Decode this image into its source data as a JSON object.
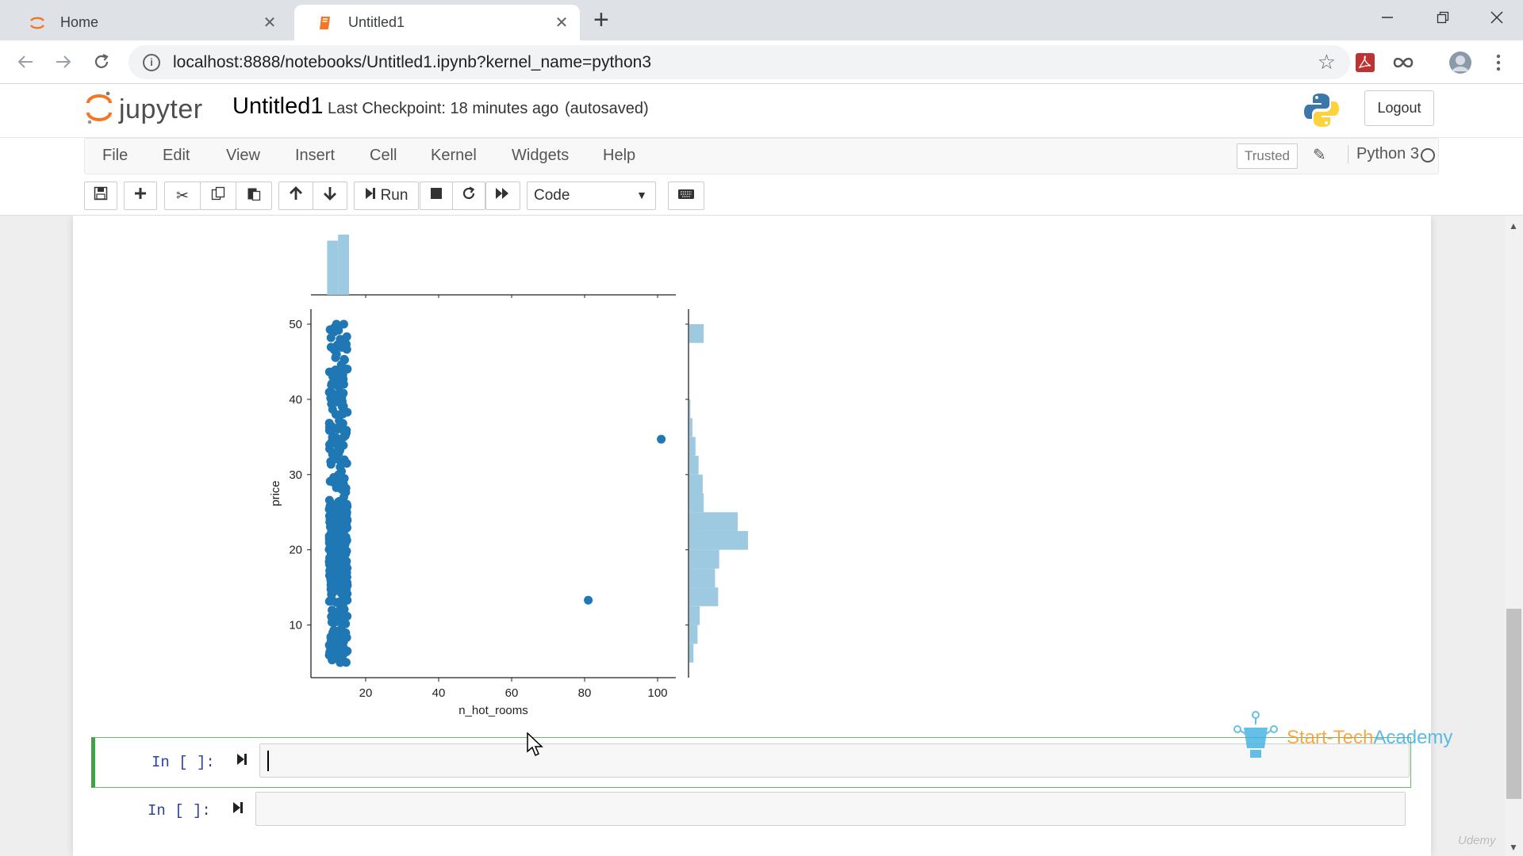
{
  "browser": {
    "tabs": [
      {
        "label": "Home",
        "active": false
      },
      {
        "label": "Untitled1",
        "active": true
      }
    ],
    "new_tab_symbol": "+",
    "url": "localhost:8888/notebooks/Untitled1.ipynb?kernel_name=python3"
  },
  "jupyter": {
    "logo_text": "jupyter",
    "notebook_name": "Untitled1",
    "checkpoint": "Last Checkpoint: 18 minutes ago",
    "autosave": "(autosaved)",
    "logout_label": "Logout",
    "menu": [
      "File",
      "Edit",
      "View",
      "Insert",
      "Cell",
      "Kernel",
      "Widgets",
      "Help"
    ],
    "trusted_label": "Trusted",
    "kernel_name": "Python 3",
    "run_label": "Run",
    "cell_type": "Code"
  },
  "cells": [
    {
      "prompt": "In [ ]:",
      "value": "",
      "selected": true
    },
    {
      "prompt": "In [ ]:",
      "value": "",
      "selected": false
    }
  ],
  "watermark": {
    "part1": "Start-Tech",
    "part2": "Academy"
  },
  "udemy_mark": "Udemy",
  "colors": {
    "accent": "#1f77b4",
    "histogram": "#9ecae1",
    "selected_cell": "#42a047",
    "jupyter_orange": "#f37726"
  },
  "chart_data": {
    "type": "scatter",
    "subtype": "jointplot",
    "xlabel": "n_hot_rooms",
    "ylabel": "price",
    "xlim": [
      5,
      105
    ],
    "ylim": [
      3,
      52
    ],
    "xticks": [
      20,
      40,
      60,
      80,
      100
    ],
    "yticks": [
      10,
      20,
      30,
      40,
      50
    ],
    "main_cluster": {
      "x_min": 10,
      "x_max": 15,
      "y_min": 5,
      "y_max": 50,
      "approx_points": 500
    },
    "points": [
      {
        "x": 101,
        "y": 34.7
      },
      {
        "x": 81,
        "y": 13.3
      },
      {
        "x": 12,
        "y": 50
      },
      {
        "x": 14,
        "y": 50
      },
      {
        "x": 13,
        "y": 48
      },
      {
        "x": 12,
        "y": 46
      },
      {
        "x": 13,
        "y": 44
      },
      {
        "x": 11,
        "y": 43
      },
      {
        "x": 14,
        "y": 42
      },
      {
        "x": 12,
        "y": 40
      },
      {
        "x": 13,
        "y": 38
      },
      {
        "x": 11,
        "y": 36
      },
      {
        "x": 14,
        "y": 35
      },
      {
        "x": 12,
        "y": 33
      },
      {
        "x": 13,
        "y": 31
      },
      {
        "x": 11,
        "y": 29
      },
      {
        "x": 14,
        "y": 27
      },
      {
        "x": 12,
        "y": 25
      },
      {
        "x": 13,
        "y": 23
      },
      {
        "x": 12,
        "y": 21
      },
      {
        "x": 14,
        "y": 19
      },
      {
        "x": 11,
        "y": 17
      },
      {
        "x": 13,
        "y": 15
      },
      {
        "x": 12,
        "y": 13
      },
      {
        "x": 14,
        "y": 11
      },
      {
        "x": 11,
        "y": 9
      },
      {
        "x": 13,
        "y": 8
      },
      {
        "x": 12,
        "y": 6
      },
      {
        "x": 13,
        "y": 5
      }
    ],
    "x_marginal_histogram": [
      {
        "bin_start": 9,
        "bin_end": 12,
        "count": 54
      },
      {
        "bin_start": 12,
        "bin_end": 15,
        "count": 60
      }
    ],
    "y_marginal_histogram": [
      {
        "bin_start": 5,
        "bin_end": 7.5,
        "count": 4
      },
      {
        "bin_start": 7.5,
        "bin_end": 10,
        "count": 8
      },
      {
        "bin_start": 10,
        "bin_end": 12.5,
        "count": 10
      },
      {
        "bin_start": 12.5,
        "bin_end": 15,
        "count": 28
      },
      {
        "bin_start": 15,
        "bin_end": 17.5,
        "count": 25
      },
      {
        "bin_start": 17.5,
        "bin_end": 20,
        "count": 29
      },
      {
        "bin_start": 20,
        "bin_end": 22.5,
        "count": 57
      },
      {
        "bin_start": 22.5,
        "bin_end": 25,
        "count": 47
      },
      {
        "bin_start": 25,
        "bin_end": 27.5,
        "count": 14
      },
      {
        "bin_start": 27.5,
        "bin_end": 30,
        "count": 13
      },
      {
        "bin_start": 30,
        "bin_end": 32.5,
        "count": 9
      },
      {
        "bin_start": 32.5,
        "bin_end": 35,
        "count": 6
      },
      {
        "bin_start": 35,
        "bin_end": 37.5,
        "count": 3
      },
      {
        "bin_start": 37.5,
        "bin_end": 40,
        "count": 1
      },
      {
        "bin_start": 47.5,
        "bin_end": 50,
        "count": 14
      }
    ]
  }
}
